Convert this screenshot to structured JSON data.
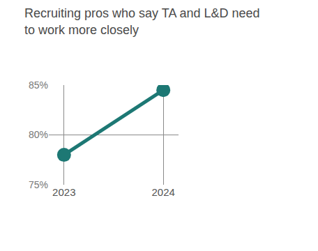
{
  "chart_data": {
    "type": "line",
    "title": "Recruiting pros who say TA and L&D need to work more closely",
    "categories": [
      "2023",
      "2024"
    ],
    "values": [
      78,
      84.5
    ],
    "color": "#1d7874",
    "ylim": [
      75,
      85
    ],
    "yticks": [
      {
        "value": 75,
        "label": "75%"
      },
      {
        "value": 80,
        "label": "80%"
      },
      {
        "value": 85,
        "label": "85%"
      }
    ],
    "grid": true,
    "marker": "circle"
  }
}
